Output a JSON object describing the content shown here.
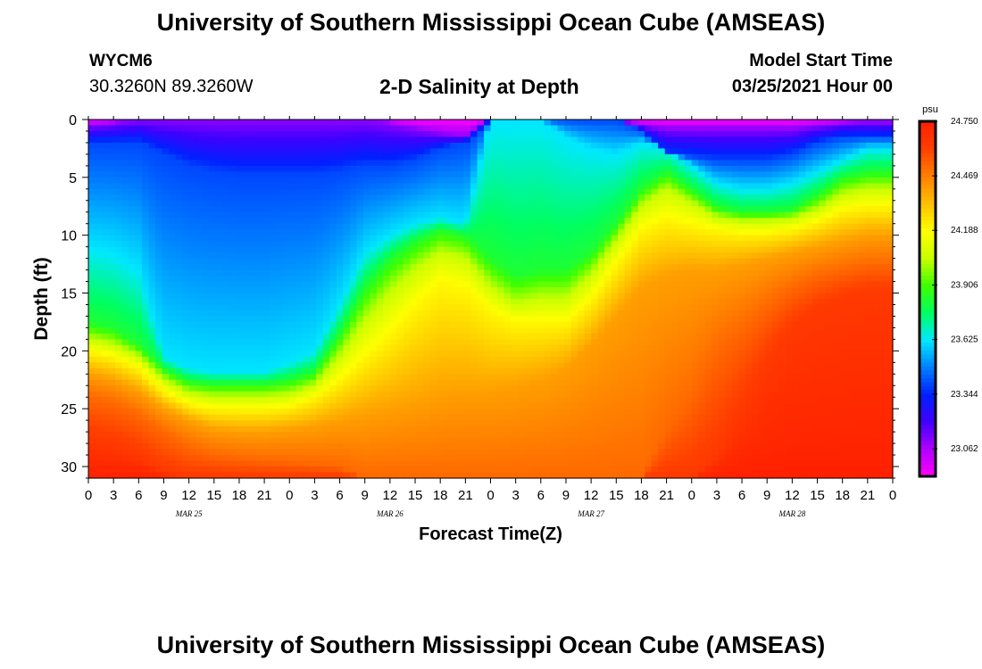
{
  "header": {
    "title": "University of Southern Mississippi Ocean Cube (AMSEAS)",
    "station_id": "WYCM6",
    "coordinates": "30.3260N  89.3260W",
    "plot_title": "2-D Salinity at Depth",
    "start_label": "Model Start Time",
    "start_value": "03/25/2021 Hour 00"
  },
  "footer": {
    "title": "University of Southern Mississippi Ocean Cube (AMSEAS)"
  },
  "chart_data": {
    "type": "heatmap",
    "title": "2-D Salinity at Depth",
    "xlabel": "Forecast Time(Z)",
    "ylabel": "Depth (ft)",
    "x_hours": [
      0,
      96
    ],
    "x_tick_step_hours": 3,
    "x_tick_labels": [
      "0",
      "3",
      "6",
      "9",
      "12",
      "15",
      "18",
      "21",
      "0",
      "3",
      "6",
      "9",
      "12",
      "15",
      "18",
      "21",
      "0",
      "3",
      "6",
      "9",
      "12",
      "15",
      "18",
      "21",
      "0",
      "3",
      "6",
      "9",
      "12",
      "15",
      "18",
      "21",
      "0"
    ],
    "date_labels": [
      {
        "label": "MAR 25",
        "hour": 12
      },
      {
        "label": "MAR 26",
        "hour": 36
      },
      {
        "label": "MAR 27",
        "hour": 60
      },
      {
        "label": "MAR 28",
        "hour": 84
      }
    ],
    "ylim": [
      0,
      31
    ],
    "y_ticks": [
      0,
      5,
      10,
      15,
      20,
      25,
      30
    ],
    "y_tick_labels": [
      "0",
      "5",
      "10",
      "15",
      "20",
      "25",
      "30"
    ],
    "colorbar": {
      "unit": "psu",
      "min": 22.92,
      "max": 24.75,
      "ticks": [
        23.062,
        23.344,
        23.625,
        23.906,
        24.188,
        24.469,
        24.75
      ],
      "tick_labels": [
        "23.062",
        "23.344",
        "23.625",
        "23.906",
        "24.188",
        "24.469",
        "24.750"
      ],
      "colors": [
        "#ff00ff",
        "#b000ff",
        "#4000ff",
        "#0020ff",
        "#0080ff",
        "#00e8ff",
        "#00ff60",
        "#40ff00",
        "#c8ff00",
        "#ffff00",
        "#ffc000",
        "#ff8000",
        "#ff4000",
        "#ff2000"
      ]
    },
    "isolines": {
      "hours": [
        0,
        3,
        6,
        9,
        12,
        15,
        18,
        21,
        24,
        27,
        30,
        33,
        36,
        39,
        42,
        45,
        48,
        51,
        54,
        57,
        60,
        63,
        66,
        69,
        72,
        75,
        78,
        81,
        84,
        87,
        90,
        93,
        96
      ],
      "levels": [
        {
          "salinity": 23.1,
          "depth": [
            0.5,
            0.3,
            0,
            0,
            0,
            0,
            0,
            0,
            0,
            0,
            0,
            0,
            0.3,
            0.8,
            1.2,
            1.5,
            0,
            0,
            0,
            0,
            0,
            0,
            0.5,
            0.8,
            0.8,
            0.8,
            0.8,
            0.8,
            0.8,
            0.5,
            0.3,
            0.2,
            0.2
          ]
        },
        {
          "salinity": 23.4,
          "depth": [
            2,
            2,
            2,
            3,
            4,
            4.5,
            4.8,
            4.8,
            4.8,
            4.8,
            4.5,
            4,
            4,
            3.5,
            2.5,
            2,
            0,
            0,
            0,
            0,
            0,
            0,
            1,
            3,
            3.2,
            3.5,
            3.5,
            3.5,
            3.0,
            2.0,
            1.5,
            1.5,
            1.5
          ]
        },
        {
          "salinity": 23.62,
          "depth": [
            11,
            11.5,
            13.0,
            20.5,
            21.5,
            21.8,
            21.8,
            21.8,
            21.0,
            20.0,
            16.0,
            11.5,
            10.0,
            9.0,
            8.5,
            9.0,
            0,
            0,
            0,
            1.5,
            2.5,
            3.0,
            2.0,
            2.5,
            4.0,
            5.5,
            6.0,
            6.0,
            5.5,
            4.5,
            3.5,
            2.5,
            2.5
          ]
        },
        {
          "salinity": 23.83,
          "depth": [
            17.5,
            18.0,
            19.5,
            21.5,
            22.6,
            22.8,
            22.8,
            22.8,
            22.5,
            21.8,
            18.5,
            14.5,
            12.0,
            10.5,
            9.5,
            10.0,
            12.0,
            13.5,
            13.0,
            13.0,
            11.5,
            9.0,
            6.0,
            4.5,
            6.0,
            7.5,
            8.0,
            8.0,
            7.8,
            6.5,
            5.0,
            4.5,
            4.5
          ]
        },
        {
          "salinity": 24.05,
          "depth": [
            19.0,
            19.5,
            20.5,
            22.5,
            23.7,
            24.0,
            24.0,
            24.0,
            23.8,
            23.0,
            20.5,
            17.5,
            15.0,
            13.0,
            11.5,
            12.0,
            14.5,
            16.0,
            15.5,
            15.5,
            13.5,
            10.5,
            7.5,
            6.0,
            7.2,
            8.5,
            8.8,
            8.8,
            8.6,
            7.8,
            6.5,
            6.0,
            6.0
          ]
        },
        {
          "salinity": 24.2,
          "depth": [
            20.0,
            20.5,
            21.5,
            23.5,
            24.6,
            25.0,
            25.0,
            25.0,
            24.8,
            24.0,
            22.5,
            20.5,
            18.5,
            16.0,
            14.0,
            14.5,
            16.5,
            17.5,
            17.5,
            17.5,
            15.5,
            12.5,
            9.5,
            8.5,
            9.0,
            9.5,
            9.8,
            9.8,
            9.5,
            8.8,
            7.8,
            7.5,
            7.5
          ]
        },
        {
          "salinity": 24.4,
          "depth": [
            22.0,
            22.5,
            23.5,
            25.0,
            26.0,
            26.8,
            27.0,
            27.0,
            26.8,
            26.5,
            26.0,
            25.5,
            25.0,
            24.5,
            23.8,
            23.5,
            23.5,
            23.0,
            22.5,
            21.5,
            19.5,
            17.0,
            14.5,
            13.5,
            13.0,
            13.0,
            12.5,
            12.0,
            11.5,
            11.0,
            10.5,
            10.0,
            10.0
          ]
        },
        {
          "salinity": 24.52,
          "depth": [
            24.0,
            24.5,
            25.5,
            27.0,
            28.3,
            29.0,
            29.3,
            29.5,
            29.6,
            29.8,
            30.0,
            31.0,
            31.0,
            31.0,
            31.0,
            31.0,
            31.0,
            31.0,
            31.0,
            31.0,
            31.0,
            31.0,
            31.0,
            27.0,
            24.0,
            20.0,
            18.0,
            16.0,
            14.5,
            13.5,
            13.0,
            12.5,
            12.5
          ]
        },
        {
          "salinity": 24.64,
          "depth": [
            27.5,
            28.0,
            29.0,
            30.5,
            31.0,
            31.0,
            31.0,
            31.0,
            31.0,
            31.0,
            31.0,
            31.0,
            31.0,
            31.0,
            31.0,
            31.0,
            31.0,
            31.0,
            31.0,
            31.0,
            31.0,
            31.0,
            31.0,
            31.0,
            31.0,
            29.0,
            25.0,
            21.0,
            18.0,
            16.5,
            15.5,
            15.0,
            15.0
          ]
        }
      ]
    }
  }
}
